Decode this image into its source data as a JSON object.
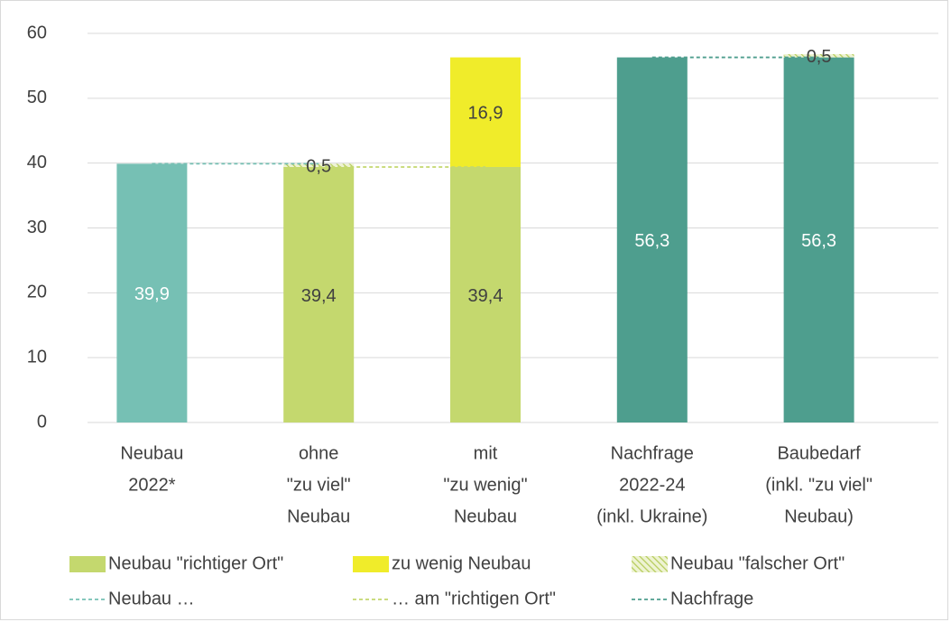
{
  "chart_data": {
    "type": "bar",
    "categories": [
      [
        "Neubau",
        "2022*"
      ],
      [
        "ohne",
        "\"zu viel\"",
        "Neubau"
      ],
      [
        "mit",
        "\"zu wenig\"",
        "Neubau"
      ],
      [
        "Nachfrage",
        "2022-24",
        "(inkl. Ukraine)"
      ],
      [
        "Baubedarf",
        "(inkl. \"zu viel\"",
        "Neubau)"
      ]
    ],
    "series": [
      {
        "color": "#76c0b4",
        "label_color": "#ffffff",
        "values": [
          39.9,
          null,
          null,
          null,
          null
        ],
        "value_labels": [
          "39,9",
          null,
          null,
          null,
          null
        ]
      },
      {
        "name": "Neubau \"richtiger Ort\"",
        "color": "#c4d86e",
        "label_color": "#404040",
        "values": [
          null,
          39.4,
          39.4,
          null,
          null
        ],
        "value_labels": [
          null,
          "39,4",
          "39,4",
          null,
          null
        ]
      },
      {
        "color": "#4e9e8e",
        "label_color": "#ffffff",
        "values": [
          null,
          null,
          null,
          56.3,
          56.3
        ],
        "value_labels": [
          null,
          null,
          null,
          "56,3",
          "56,3"
        ]
      },
      {
        "name": "zu wenig Neubau",
        "color": "#f0ec2a",
        "label_color": "#404040",
        "values": [
          null,
          null,
          16.9,
          null,
          null
        ],
        "value_labels": [
          null,
          null,
          "16,9",
          null,
          null
        ]
      },
      {
        "name": "Neubau \"falscher Ort\"",
        "color": "#c4d86e",
        "hatch": true,
        "label_color": "#404040",
        "values": [
          null,
          0.5,
          null,
          null,
          0.5
        ],
        "value_labels": [
          null,
          "0,5",
          null,
          null,
          "0,5"
        ]
      }
    ],
    "lines": [
      {
        "name": "Neubau …",
        "color": "#76c0b4",
        "values": [
          39.9,
          39.9,
          null,
          null,
          null
        ]
      },
      {
        "name": "… am \"richtigen Ort\"",
        "color": "#c4d86e",
        "values": [
          null,
          39.4,
          39.4,
          null,
          null
        ]
      },
      {
        "name": "Nachfrage",
        "color": "#4e9e8e",
        "values": [
          null,
          null,
          null,
          56.3,
          56.3
        ]
      }
    ],
    "ylim": [
      0,
      60
    ],
    "yticks": [
      0,
      10,
      20,
      30,
      40,
      50,
      60
    ],
    "grid": true
  }
}
